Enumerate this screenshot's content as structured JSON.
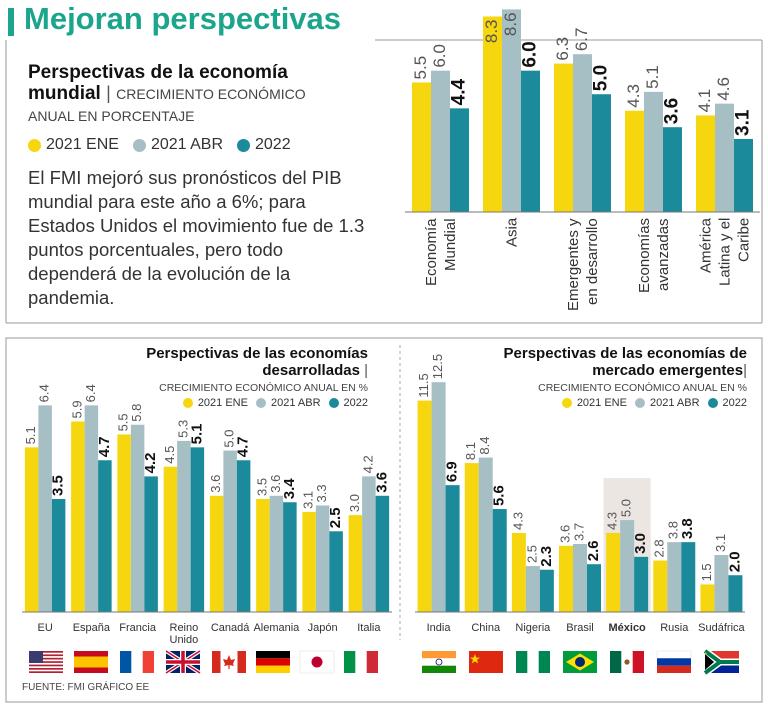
{
  "title": "Mejoran perspectivas",
  "description": "El FMI mejoró sus pronósticos del PIB mundial para este año a 6%; para Estados Unidos el movimiento fue de 1.3 puntos porcentuales, pero todo dependerá de la evolución de la pandemia.",
  "source": "FUENTE: FMI GRÁFICO EE",
  "chart_data": [
    {
      "type": "bar",
      "title": "Perspectivas de la economía mundial",
      "subtitle": "CRECIMIENTO ECONÓMICO ANUAL EN PORCENTAJE",
      "categories": [
        "Economía Mundial",
        "Asia",
        "Emergentes y en desarrollo",
        "Economías avanzadas",
        "América Latina y el Caribe"
      ],
      "ylim": [
        0,
        9
      ],
      "series": [
        {
          "name": "2021 ENE",
          "color": "#f6d70f",
          "values": [
            5.5,
            8.3,
            6.3,
            4.3,
            4.1
          ],
          "value_labels": [
            "5.5",
            "8.3",
            "6.3",
            "4.3",
            "4.1"
          ]
        },
        {
          "name": "2021 ABR",
          "color": "#a6bfc5",
          "values": [
            6.0,
            8.6,
            6.7,
            5.1,
            4.6
          ],
          "value_labels": [
            "6.0",
            "8.6",
            "6.7",
            "5.1",
            "4.6"
          ]
        },
        {
          "name": "2022",
          "color": "#1b8b9b",
          "values": [
            4.4,
            6.0,
            5.0,
            3.6,
            3.1
          ],
          "value_labels": [
            "4.4",
            "6.0",
            "5.0",
            "3.6",
            "3.1"
          ]
        }
      ]
    },
    {
      "type": "bar",
      "title": "Perspectivas de las economías desarrolladas",
      "subtitle": "CRECIMIENTO ECONÓMICO ANUAL EN %",
      "categories": [
        "EU",
        "España",
        "Francia",
        "Reino Unido",
        "Canadá",
        "Alemania",
        "Japón",
        "Italia"
      ],
      "ylim": [
        0,
        7
      ],
      "series": [
        {
          "name": "2021 ENE",
          "color": "#f6d70f",
          "values": [
            5.1,
            5.9,
            5.5,
            4.5,
            3.6,
            3.5,
            3.1,
            3.0
          ],
          "value_labels": [
            "5.1",
            "5.9",
            "5.5",
            "4.5",
            "3.6",
            "3.5",
            "3.1",
            "3.0"
          ]
        },
        {
          "name": "2021 ABR",
          "color": "#a6bfc5",
          "values": [
            6.4,
            6.4,
            5.8,
            5.3,
            5.0,
            3.6,
            3.3,
            4.2
          ],
          "value_labels": [
            "6.4",
            "6.4",
            "5.8",
            "5.3",
            "5.0",
            "3.6",
            "3.3",
            "4.2"
          ]
        },
        {
          "name": "2022",
          "color": "#1b8b9b",
          "values": [
            3.5,
            4.7,
            4.2,
            5.1,
            4.7,
            3.4,
            2.5,
            3.6
          ],
          "value_labels": [
            "3.5",
            "4.7",
            "4.2",
            "5.1",
            "4.7",
            "3.4",
            "2.5",
            "3.6"
          ]
        }
      ]
    },
    {
      "type": "bar",
      "title": "Perspectivas de las economías de mercado emergentes",
      "subtitle": "CRECIMIENTO ECONÓMICO ANUAL EN %",
      "categories": [
        "India",
        "China",
        "Nigeria",
        "Brasil",
        "México",
        "Rusia",
        "Sudáfrica"
      ],
      "highlight": "México",
      "ylim": [
        0,
        13
      ],
      "series": [
        {
          "name": "2021 ENE",
          "color": "#f6d70f",
          "values": [
            11.5,
            8.1,
            4.3,
            3.6,
            4.3,
            2.8,
            1.5
          ],
          "value_labels": [
            "11.5",
            "8.1",
            "4.3",
            "3.6",
            "4.3",
            "2.8",
            "1.5"
          ]
        },
        {
          "name": "2021 ABR",
          "color": "#a6bfc5",
          "values": [
            12.5,
            8.4,
            2.5,
            3.7,
            5.0,
            3.8,
            3.1
          ],
          "value_labels": [
            "12.5",
            "8.4",
            "2.5",
            "3.7",
            "5.0",
            "3.8",
            "3.1"
          ]
        },
        {
          "name": "2022",
          "color": "#1b8b9b",
          "values": [
            6.9,
            5.6,
            2.3,
            2.6,
            3.0,
            3.8,
            2.0
          ],
          "value_labels": [
            "6.9",
            "5.6",
            "2.3",
            "2.6",
            "3.0",
            "3.8",
            "2.0"
          ]
        }
      ]
    }
  ]
}
